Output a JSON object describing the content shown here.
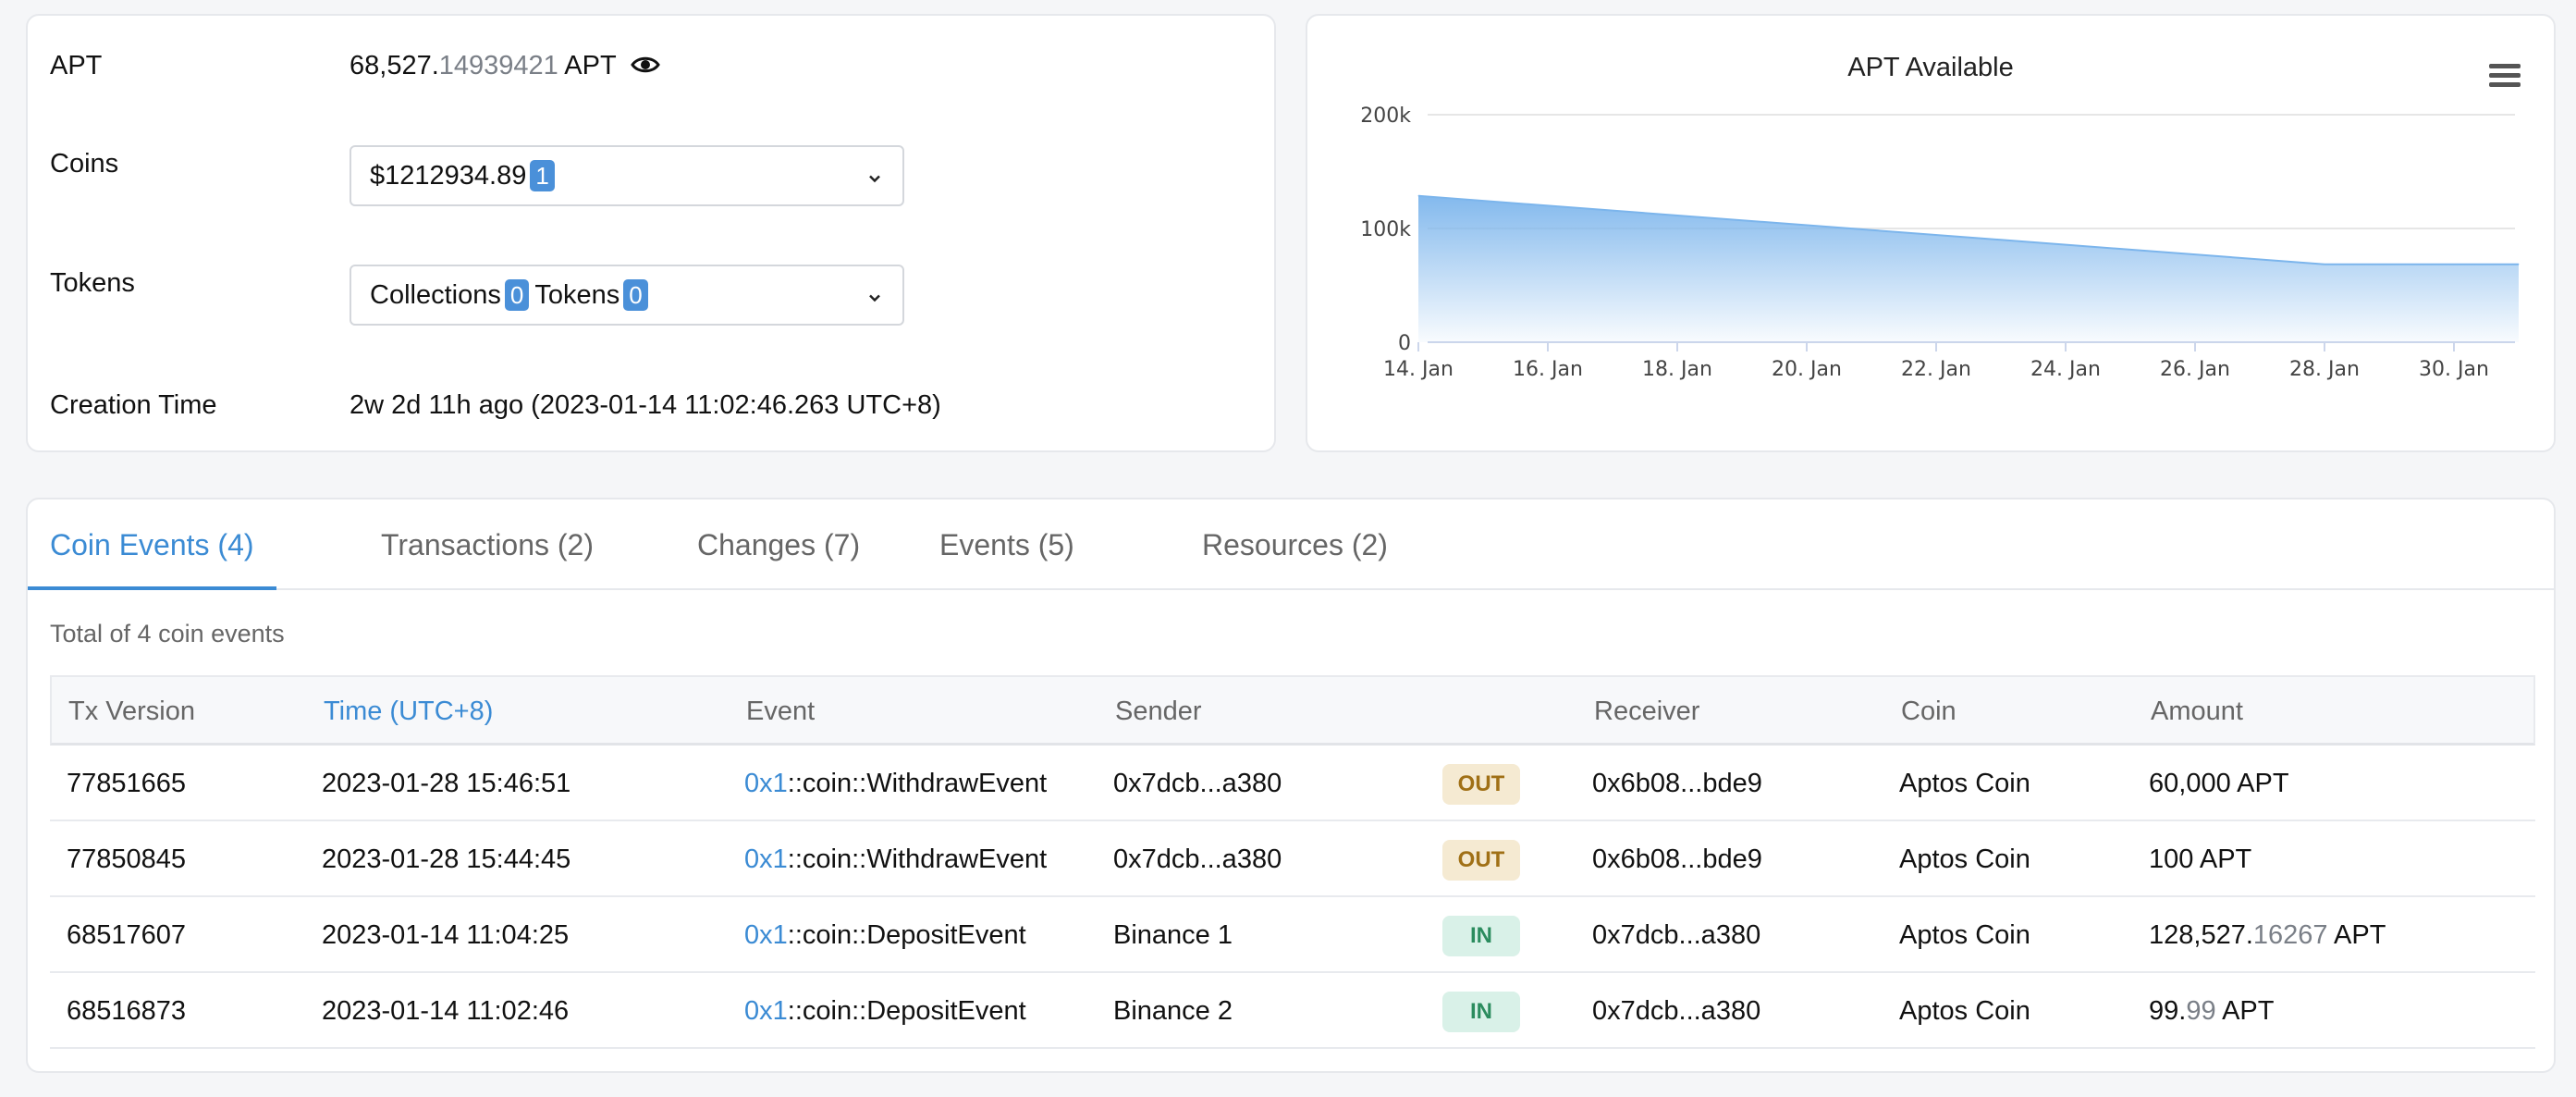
{
  "info": {
    "apt_label": "APT",
    "apt_value_int": "68,527.",
    "apt_value_dec": "14939421",
    "apt_unit": "APT",
    "coins_label": "Coins",
    "coins_value": "$1212934.89",
    "coins_count": "1",
    "tokens_label": "Tokens",
    "collections_label": "Collections",
    "collections_count": "0",
    "tokens_sub_label": "Tokens",
    "tokens_count": "0",
    "creation_label": "Creation Time",
    "creation_value": "2w 2d 11h ago (2023-01-14 11:02:46.263 UTC+8)"
  },
  "chart_data": {
    "type": "area",
    "title": "APT Available",
    "x": [
      "2023-01-14",
      "2023-01-28",
      "2023-01-31"
    ],
    "values": [
      128626,
      68527,
      68527
    ],
    "xticks": [
      "14. Jan",
      "16. Jan",
      "18. Jan",
      "20. Jan",
      "22. Jan",
      "24. Jan",
      "26. Jan",
      "28. Jan",
      "30. Jan"
    ],
    "yticks": [
      "0",
      "100k",
      "200k"
    ],
    "ylim": [
      0,
      200000
    ],
    "grid": true,
    "color": "#7cb5ec"
  },
  "tabs": [
    {
      "label": "Coin Events (4)",
      "active": true
    },
    {
      "label": "Transactions (2)"
    },
    {
      "label": "Changes (7)"
    },
    {
      "label": "Events (5)"
    },
    {
      "label": "Resources (2)"
    }
  ],
  "total_text": "Total of 4 coin events",
  "table": {
    "headers": [
      "Tx Version",
      "Time (UTC+8)",
      "Event",
      "Sender",
      "Receiver",
      "Coin",
      "Amount"
    ],
    "rows": [
      {
        "version": "77851665",
        "time": "2023-01-28 15:46:51",
        "event_addr": "0x1",
        "event_name": "::coin::WithdrawEvent",
        "sender": "0x7dcb...a380",
        "direction": "OUT",
        "receiver": "0x6b08...bde9",
        "coin": "Aptos Coin",
        "amount_int": "60,000",
        "amount_dec": "",
        "amount_unit": "APT"
      },
      {
        "version": "77850845",
        "time": "2023-01-28 15:44:45",
        "event_addr": "0x1",
        "event_name": "::coin::WithdrawEvent",
        "sender": "0x7dcb...a380",
        "direction": "OUT",
        "receiver": "0x6b08...bde9",
        "coin": "Aptos Coin",
        "amount_int": "100",
        "amount_dec": "",
        "amount_unit": "APT"
      },
      {
        "version": "68517607",
        "time": "2023-01-14 11:04:25",
        "event_addr": "0x1",
        "event_name": "::coin::DepositEvent",
        "sender": "Binance 1",
        "direction": "IN",
        "receiver": "0x7dcb...a380",
        "coin": "Aptos Coin",
        "amount_int": "128,527.",
        "amount_dec": "16267",
        "amount_unit": "APT"
      },
      {
        "version": "68516873",
        "time": "2023-01-14 11:02:46",
        "event_addr": "0x1",
        "event_name": "::coin::DepositEvent",
        "sender": "Binance 2",
        "direction": "IN",
        "receiver": "0x7dcb...a380",
        "coin": "Aptos Coin",
        "amount_int": "99.",
        "amount_dec": "99",
        "amount_unit": "APT"
      }
    ]
  }
}
